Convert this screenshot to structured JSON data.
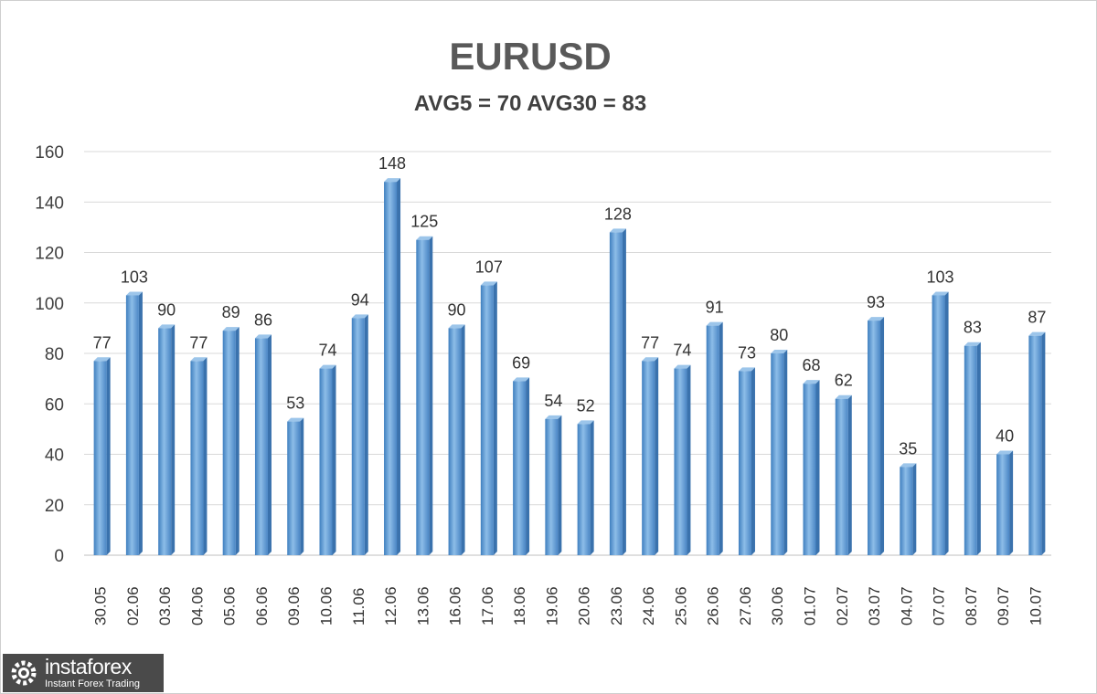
{
  "chart_data": {
    "type": "bar",
    "title": "EURUSD",
    "subtitle": "AVG5 = 70 AVG30 = 83",
    "xlabel": "",
    "ylabel": "",
    "ylim": [
      0,
      160
    ],
    "yticks": [
      "0",
      "20",
      "40",
      "60",
      "80",
      "100",
      "120",
      "140",
      "160"
    ],
    "grid": true,
    "categories": [
      "30.05",
      "02.06",
      "03.06",
      "04.06",
      "05.06",
      "06.06",
      "09.06",
      "10.06",
      "11.06",
      "12.06",
      "13.06",
      "16.06",
      "17.06",
      "18.06",
      "19.06",
      "20.06",
      "23.06",
      "24.06",
      "25.06",
      "26.06",
      "27.06",
      "30.06",
      "01.07",
      "02.07",
      "03.07",
      "04.07",
      "07.07",
      "08.07",
      "09.07",
      "10.07"
    ],
    "values": [
      77,
      103,
      90,
      77,
      89,
      86,
      53,
      74,
      94,
      148,
      125,
      90,
      107,
      69,
      54,
      52,
      128,
      77,
      74,
      91,
      73,
      80,
      68,
      62,
      93,
      35,
      103,
      83,
      40,
      87
    ],
    "bar_color": "#5b9bd5"
  },
  "logo": {
    "name": "instaforex",
    "tagline": "Instant Forex Trading"
  }
}
